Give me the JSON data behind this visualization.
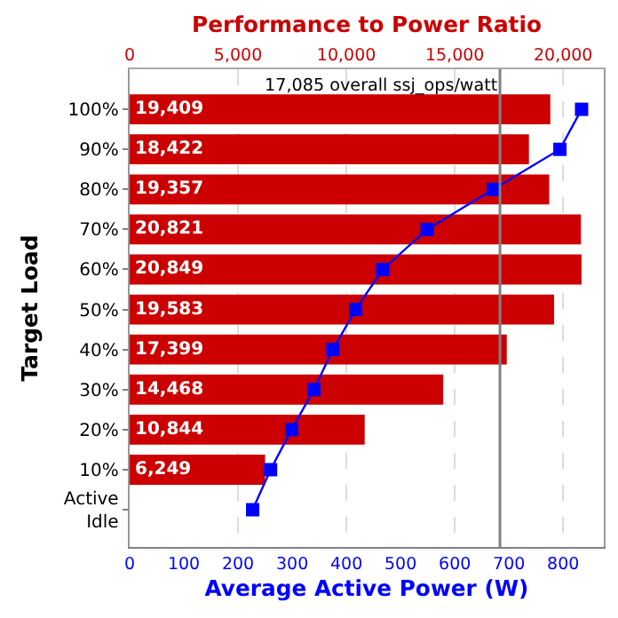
{
  "chart_data": {
    "type": "bar",
    "orientation": "horizontal",
    "categories": [
      "100%",
      "90%",
      "80%",
      "70%",
      "60%",
      "50%",
      "40%",
      "30%",
      "20%",
      "10%",
      "Active\nIdle"
    ],
    "series": [
      {
        "axis": "x2",
        "color": "#cc0000",
        "values": [
          19409,
          18422,
          19357,
          20821,
          20849,
          19583,
          17399,
          14468,
          10844,
          6249,
          null
        ],
        "value_labels": [
          "19,409",
          "18,422",
          "19,357",
          "20,821",
          "20,849",
          "19,583",
          "17,399",
          "14,468",
          "10,844",
          "6,249",
          null
        ]
      },
      {
        "type": "line",
        "color": "#0000ff",
        "values": [
          834,
          794,
          671,
          549,
          467,
          417,
          375,
          340,
          299,
          260,
          227
        ]
      }
    ],
    "xlabel": "Average Active Power (W)",
    "x2label": "Performance to Power Ratio",
    "ylabel": "Target Load",
    "xlim": [
      0,
      875
    ],
    "xticks": [
      0,
      100,
      200,
      300,
      400,
      500,
      600,
      700,
      800
    ],
    "x2lim": [
      0,
      21875
    ],
    "x2ticks": [
      0,
      {
        "value": 5000,
        "label": "5,000"
      },
      {
        "value": 10000,
        "label": "10,000"
      },
      {
        "value": 15000,
        "label": "15,000"
      },
      {
        "value": 20000,
        "label": "20,000"
      }
    ],
    "ref_lines": [
      {
        "axis": "x2",
        "value": 17085,
        "label": "17,085 overall ssj_ops/watt",
        "color": "#808080"
      }
    ],
    "grid": "x2",
    "marker": "square",
    "line_style": "solid"
  }
}
